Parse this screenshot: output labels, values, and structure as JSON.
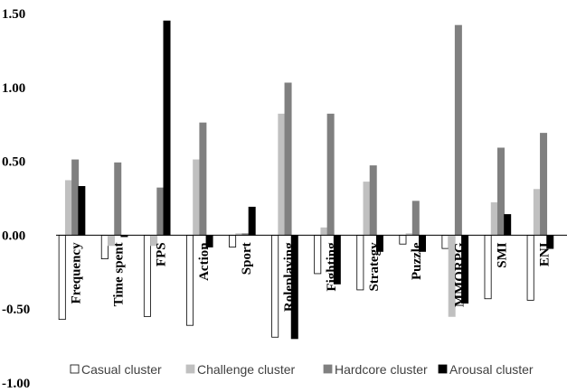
{
  "chart_data": {
    "type": "bar",
    "title": "",
    "xlabel": "",
    "ylabel": "",
    "ylim": [
      -1.0,
      1.5
    ],
    "y_ticks": [
      "1.50",
      "1.00",
      "0.50",
      "0.00",
      "-0.50",
      "-1.00"
    ],
    "y_tick_values": [
      1.5,
      1.0,
      0.5,
      0.0,
      -0.5,
      -1.0
    ],
    "grid": false,
    "legend_position": "bottom",
    "categories": [
      "Frequency",
      "Time spent",
      "FPS",
      "Action",
      "Sport",
      "Roleplaying",
      "Fighting",
      "Strategy",
      "Puzzle",
      "MMORPG",
      "SMI",
      "ENI"
    ],
    "series": [
      {
        "name": "Casual cluster",
        "color": "#ffffff",
        "stroke": "#000000",
        "values": [
          -0.57,
          -0.16,
          -0.55,
          -0.61,
          -0.08,
          -0.69,
          -0.26,
          -0.37,
          -0.06,
          -0.09,
          -0.43,
          -0.44
        ]
      },
      {
        "name": "Challenge cluster",
        "color": "#c0c0c0",
        "stroke": "#c0c0c0",
        "values": [
          0.37,
          -0.07,
          -0.07,
          0.51,
          0.01,
          0.82,
          0.05,
          0.36,
          0.01,
          -0.55,
          0.22,
          0.31
        ]
      },
      {
        "name": "Hardcore cluster",
        "color": "#808080",
        "stroke": "#808080",
        "values": [
          0.51,
          0.49,
          0.32,
          0.76,
          0.01,
          1.03,
          0.82,
          0.47,
          0.23,
          1.42,
          0.59,
          0.69
        ]
      },
      {
        "name": "Arousal cluster",
        "color": "#000000",
        "stroke": "#000000",
        "values": [
          0.33,
          -0.01,
          1.45,
          -0.08,
          0.19,
          -0.7,
          -0.33,
          -0.11,
          -0.11,
          -0.46,
          0.14,
          -0.09
        ]
      }
    ]
  }
}
